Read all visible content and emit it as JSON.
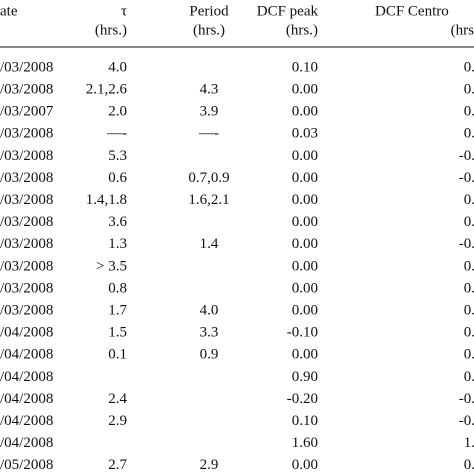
{
  "table": {
    "header": [
      [
        "ate",
        "τ",
        "Period",
        "DCF peak",
        "DCF Centro"
      ],
      [
        "",
        "(hrs.)",
        "(hrs.)",
        "(hrs.)",
        "(hrs"
      ]
    ],
    "rows": [
      [
        "/03/2008",
        "4.0",
        "",
        "0.10",
        "0."
      ],
      [
        "/03/2008",
        "2.1,2.6",
        "4.3",
        "0.00",
        "0."
      ],
      [
        "/03/2007",
        "2.0",
        "3.9",
        "0.00",
        "0."
      ],
      [
        "/03/2008",
        "—-",
        "—-",
        "0.03",
        "0."
      ],
      [
        "/03/2008",
        "5.3",
        "",
        "0.00",
        "-0."
      ],
      [
        "/03/2008",
        "0.6",
        "0.7,0.9",
        "0.00",
        "-0."
      ],
      [
        "/03/2008",
        "1.4,1.8",
        "1.6,2.1",
        "0.00",
        "0."
      ],
      [
        "/03/2008",
        "3.6",
        "",
        "0.00",
        "0."
      ],
      [
        "/03/2008",
        "1.3",
        "1.4",
        "0.00",
        "-0."
      ],
      [
        "/03/2008",
        "> 3.5",
        "",
        "0.00",
        "0."
      ],
      [
        "/03/2008",
        "0.8",
        "",
        "0.00",
        "0."
      ],
      [
        "/03/2008",
        "1.7",
        "4.0",
        "0.00",
        "0."
      ],
      [
        "/04/2008",
        "1.5",
        "3.3",
        "-0.10",
        "0."
      ],
      [
        "/04/2008",
        "0.1",
        "0.9",
        "0.00",
        "0."
      ],
      [
        "/04/2008",
        "",
        "",
        "0.90",
        "0."
      ],
      [
        "/04/2008",
        "2.4",
        "",
        "-0.20",
        "-0."
      ],
      [
        "/04/2008",
        "2.9",
        "",
        "0.10",
        "-0."
      ],
      [
        "/04/2008",
        "",
        "",
        "1.60",
        "1."
      ],
      [
        "/05/2008",
        "2.7",
        "2.9",
        "0.00",
        "0."
      ]
    ]
  }
}
